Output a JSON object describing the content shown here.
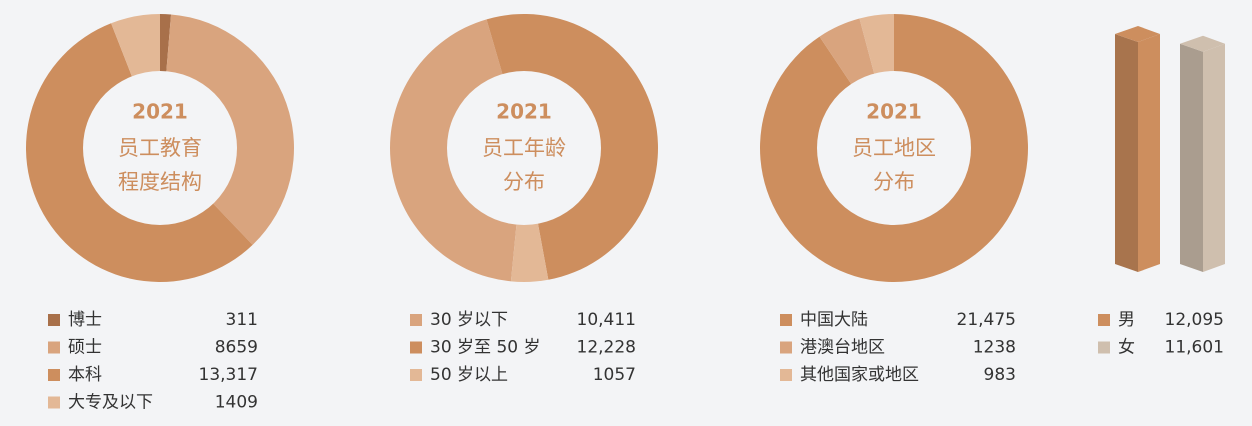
{
  "chart_data": [
    {
      "type": "pie",
      "center_text": [
        "2021",
        "员工教育",
        "程度结构"
      ],
      "start_angle": 0,
      "categories": [
        "博士",
        "硕士",
        "本科",
        "大专及以下"
      ],
      "values": [
        311,
        8659,
        13317,
        1409
      ],
      "value_labels": [
        "311",
        "8659",
        "13,317",
        "1409"
      ],
      "colors": [
        "#a8704a",
        "#d9a47e",
        "#cd8e5e",
        "#e3b896"
      ]
    },
    {
      "type": "pie",
      "center_text": [
        "2021",
        "员工年龄",
        "分布"
      ],
      "start_angle": 185.6,
      "categories": [
        "30 岁以下",
        "30 岁至 50 岁",
        "50 岁以上"
      ],
      "values": [
        10411,
        12228,
        1057
      ],
      "value_labels": [
        "10,411",
        "12,228",
        "1057"
      ],
      "colors": [
        "#d9a47e",
        "#cd8e5e",
        "#e3b896"
      ]
    },
    {
      "type": "pie",
      "center_text": [
        "2021",
        "员工地区",
        "分布"
      ],
      "start_angle": 0,
      "categories": [
        "中国大陆",
        "港澳台地区",
        "其他国家或地区"
      ],
      "values": [
        21475,
        1238,
        983
      ],
      "value_labels": [
        "21,475",
        "1238",
        "983"
      ],
      "colors": [
        "#cd8e5e",
        "#d9a47e",
        "#e3b896"
      ]
    },
    {
      "type": "bar",
      "categories": [
        "男",
        "女"
      ],
      "values": [
        12095,
        11601
      ],
      "value_labels": [
        "12,095",
        "11,601"
      ],
      "colors": [
        "#cd8e5e",
        "#cfbfae"
      ]
    }
  ]
}
